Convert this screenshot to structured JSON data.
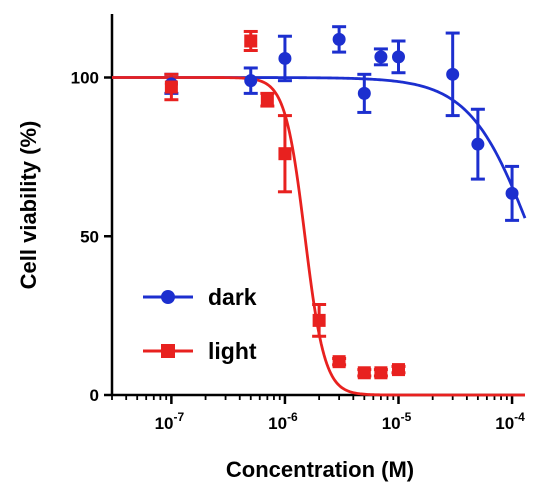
{
  "chart_data": {
    "type": "scatter",
    "title": "",
    "xlabel": "Concentration (M)",
    "ylabel": "Cell viability (%)",
    "x_scale": "log",
    "xlim": [
      3e-08,
      0.00013
    ],
    "ylim": [
      0,
      120
    ],
    "y_ticks": [
      0,
      50,
      100
    ],
    "y_tick_labels": [
      "0",
      "50",
      "100"
    ],
    "x_ticks": [
      1e-07,
      1e-06,
      1e-05,
      0.0001
    ],
    "x_tick_labels": [
      {
        "base": "10",
        "exp": "-7"
      },
      {
        "base": "10",
        "exp": "-6"
      },
      {
        "base": "10",
        "exp": "-5"
      },
      {
        "base": "10",
        "exp": "-4"
      }
    ],
    "grid": false,
    "legend_position": "bottom-left",
    "series": [
      {
        "name": "dark",
        "color": "#1c2fcf",
        "marker": "circle",
        "x": [
          1e-07,
          5e-07,
          1e-06,
          3e-06,
          5e-06,
          7e-06,
          1e-05,
          3e-05,
          5e-05,
          0.0001
        ],
        "y": [
          98,
          99,
          106,
          112,
          95,
          106.5,
          106.5,
          101,
          79,
          63.5
        ],
        "err": [
          3,
          4,
          7,
          4,
          6,
          2.5,
          5,
          13,
          11,
          8.5
        ],
        "fit": {
          "top": 100,
          "bottom": 0,
          "ec50": 0.00015,
          "hill": 1.6
        }
      },
      {
        "name": "light",
        "color": "#e8211f",
        "marker": "square",
        "x": [
          1e-07,
          5e-07,
          7e-07,
          1e-06,
          2e-06,
          3e-06,
          5e-06,
          7e-06,
          1e-05
        ],
        "y": [
          97,
          111.5,
          93,
          76,
          23.5,
          10.5,
          7,
          7,
          8
        ],
        "err": [
          4,
          3,
          2,
          12,
          5,
          1,
          1,
          1,
          1
        ],
        "fit": {
          "top": 100,
          "bottom": 0,
          "ec50": 1.5e-06,
          "hill": 5.0
        }
      }
    ]
  }
}
